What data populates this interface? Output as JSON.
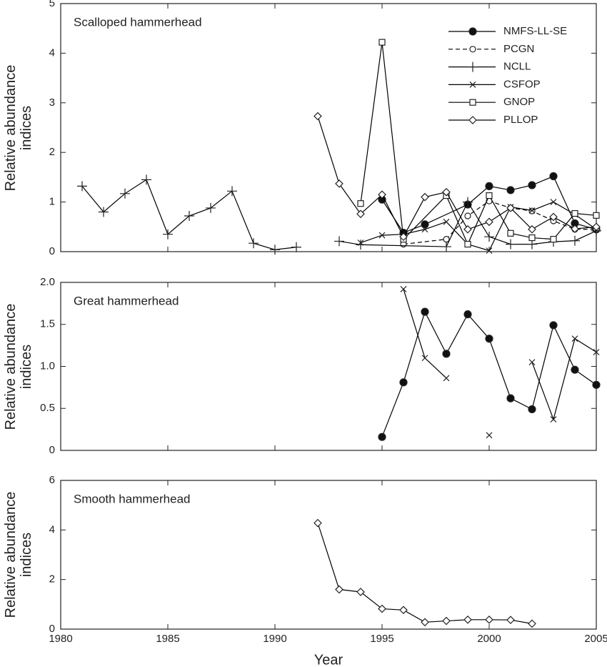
{
  "chart_data": [
    {
      "type": "line",
      "title": "Scalloped hammerhead",
      "ylabel": "Relative abundance indices",
      "xlim": [
        1980,
        2005
      ],
      "xticks": [
        1980,
        1985,
        1990,
        1995,
        2000,
        2005
      ],
      "show_xticklabels": false,
      "ylim": [
        0,
        5
      ],
      "yticks": [
        0,
        1,
        2,
        3,
        4,
        5
      ],
      "legend": "upper right",
      "series": [
        {
          "name": "NMFS-LL-SE",
          "color": "#000000",
          "marker": "filled-circle",
          "dash": false,
          "x": [
            1995,
            1996,
            1997,
            1999,
            2000,
            2001,
            2002,
            2003,
            2004,
            2005
          ],
          "values": [
            1.05,
            0.38,
            0.55,
            0.95,
            1.32,
            1.24,
            1.34,
            1.52,
            0.57,
            0.45
          ]
        },
        {
          "name": "PCGN",
          "color": "#000000",
          "marker": "open-circle",
          "dash": true,
          "x": [
            1996,
            1998,
            1999,
            2000,
            2001,
            2002,
            2003,
            2004,
            2005
          ],
          "values": [
            0.15,
            0.25,
            0.72,
            1.02,
            0.88,
            0.82,
            0.62,
            0.45,
            0.45
          ]
        },
        {
          "name": "NCLL",
          "color": "#000000",
          "marker": "plus",
          "dash": false,
          "x": [
            1981,
            1982,
            1983,
            1984,
            1985,
            1986,
            1987,
            1988,
            1989,
            1990,
            1991,
            1992,
            1993,
            1994,
            1998,
            1999,
            2000,
            2001,
            2002,
            2003,
            2004,
            2005
          ],
          "values": [
            1.32,
            0.8,
            1.17,
            1.45,
            0.35,
            0.72,
            0.88,
            1.22,
            0.17,
            0.04,
            0.09,
            null,
            0.21,
            0.14,
            0.1,
            1.0,
            0.3,
            0.15,
            0.15,
            0.2,
            0.22,
            0.42
          ]
        },
        {
          "name": "CSFOP",
          "color": "#000000",
          "marker": "cross",
          "dash": false,
          "x": [
            1994,
            1995,
            1996,
            1997,
            1998,
            1999,
            2000,
            2001,
            2002,
            2003,
            2004,
            2005
          ],
          "values": [
            0.18,
            0.33,
            0.35,
            0.45,
            0.6,
            0.15,
            0.02,
            0.9,
            0.83,
            1.0,
            0.75,
            0.45
          ]
        },
        {
          "name": "GNOP",
          "color": "#000000",
          "marker": "square",
          "dash": false,
          "x": [
            1994,
            1995,
            1996,
            1998,
            1999,
            2000,
            2001,
            2002,
            2003,
            2004,
            2005
          ],
          "values": [
            0.97,
            4.22,
            0.25,
            1.13,
            0.15,
            1.13,
            0.37,
            0.28,
            0.25,
            0.77,
            0.73
          ]
        },
        {
          "name": "PLLOP",
          "color": "#000000",
          "marker": "diamond",
          "dash": false,
          "x": [
            1992,
            1993,
            1994,
            1995,
            1996,
            1997,
            1998,
            1999,
            2000,
            2001,
            2002,
            2003,
            2004,
            2005
          ],
          "values": [
            2.73,
            1.37,
            0.76,
            1.15,
            0.3,
            1.1,
            1.2,
            0.45,
            0.6,
            0.88,
            0.45,
            0.7,
            0.46,
            0.5
          ]
        }
      ]
    },
    {
      "type": "line",
      "title": "Great hammerhead",
      "ylabel": "Relative abundance indices",
      "xlim": [
        1980,
        2005
      ],
      "xticks": [
        1980,
        1985,
        1990,
        1995,
        2000,
        2005
      ],
      "show_xticklabels": false,
      "ylim": [
        0,
        2
      ],
      "yticks": [
        0,
        0.5,
        {
          "value": 1,
          "label": "1.0"
        },
        1.5,
        {
          "value": 2,
          "label": "2.0"
        }
      ],
      "series": [
        {
          "color": "#000000",
          "marker": "filled-circle",
          "dash": false,
          "x": [
            1995,
            1996,
            1997,
            1998,
            1999,
            2000,
            2001,
            2002,
            2003,
            2004,
            2005
          ],
          "values": [
            0.16,
            0.81,
            1.65,
            1.15,
            1.62,
            1.33,
            0.62,
            0.49,
            1.49,
            0.96,
            0.78
          ]
        },
        {
          "color": "#000000",
          "marker": "cross",
          "dash": false,
          "x": [
            1996,
            1997,
            1998,
            1999,
            2000,
            2001,
            2002,
            2003,
            2004,
            2005
          ],
          "values": [
            1.92,
            1.1,
            0.86,
            null,
            0.18,
            null,
            1.05,
            0.37,
            1.33,
            1.17
          ]
        }
      ]
    },
    {
      "type": "line",
      "title": "Smooth hammerhead",
      "ylabel": "Relative abundance indices",
      "xlabel": "Year",
      "xlim": [
        1980,
        2005
      ],
      "xticks": [
        1980,
        1985,
        1990,
        1995,
        2000,
        2005
      ],
      "show_xticklabels": true,
      "ylim": [
        0,
        6
      ],
      "yticks": [
        0,
        2,
        4,
        6
      ],
      "series": [
        {
          "color": "#000000",
          "marker": "diamond",
          "dash": false,
          "x": [
            1992,
            1993,
            1994,
            1995,
            1996,
            1997,
            1998,
            1999,
            2000,
            2001,
            2002
          ],
          "values": [
            4.28,
            1.6,
            1.5,
            0.82,
            0.77,
            0.28,
            0.33,
            0.38,
            0.38,
            0.37,
            0.22
          ]
        }
      ]
    }
  ]
}
